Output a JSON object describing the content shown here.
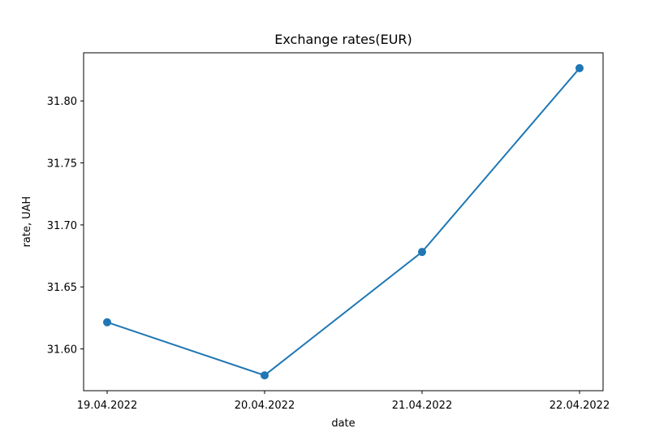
{
  "chart_data": {
    "type": "line",
    "title": "Exchange rates(EUR)",
    "xlabel": "date",
    "ylabel": "rate, UAH",
    "categories": [
      "19.04.2022",
      "20.04.2022",
      "21.04.2022",
      "22.04.2022"
    ],
    "series": [
      {
        "values": [
          31.6215,
          31.5787,
          31.6782,
          31.8264
        ],
        "color": "#1f77b4",
        "marker": "circle"
      }
    ],
    "yticks": [
      31.6,
      31.65,
      31.7,
      31.75,
      31.8
    ],
    "ytick_labels": [
      "31.60",
      "31.65",
      "31.70",
      "31.75",
      "31.80"
    ],
    "ylim": [
      31.5663,
      31.8388
    ],
    "grid": false,
    "legend": false
  }
}
